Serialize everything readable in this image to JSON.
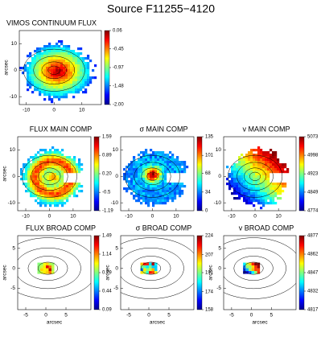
{
  "figure_title": "Source F11255−4120",
  "chart_data": [
    {
      "type": "heatmap",
      "title": "VIMOS CONTINUUM FLUX",
      "ylabel": "arcsec",
      "colormap": "jet",
      "xlim": [
        -12.5,
        17
      ],
      "ylim": [
        -13,
        15
      ],
      "xticks": [
        -10,
        0,
        10
      ],
      "yticks": [
        10,
        0,
        -10
      ],
      "clim": [
        -2,
        0.06
      ],
      "cticks": [
        0.06,
        -0.45,
        -0.97,
        -1.48,
        {
          "value": -2,
          "label": "-2.00"
        }
      ]
    },
    {
      "type": "heatmap",
      "title": "FLUX MAIN COMP",
      "ylabel": "arcsec",
      "colormap": "jet",
      "xlim": [
        -13.4,
        17.5
      ],
      "ylim": [
        -13,
        15
      ],
      "xticks": [
        -10,
        0,
        10
      ],
      "yticks": [
        10,
        0,
        -10
      ],
      "clim": [
        -1.19,
        1.59
      ],
      "cticks": [
        1.59,
        0.89,
        {
          "value": 0.2,
          "label": "0.20"
        },
        -0.5,
        -1.19
      ]
    },
    {
      "type": "heatmap",
      "title": "σ MAIN COMP",
      "colormap": "jet",
      "xlim": [
        -13.4,
        17.5
      ],
      "ylim": [
        -13,
        15
      ],
      "xticks": [
        -10,
        0,
        10
      ],
      "yticks": [
        10,
        0,
        -10
      ],
      "clim": [
        0,
        135
      ],
      "cticks": [
        135,
        101,
        68,
        34,
        0
      ]
    },
    {
      "type": "heatmap",
      "title": "v MAIN COMP",
      "colormap": "jet",
      "xlim": [
        -13.4,
        17.5
      ],
      "ylim": [
        -13,
        15
      ],
      "xticks": [
        -10,
        0,
        10
      ],
      "yticks": [
        10,
        0,
        -10
      ],
      "clim": [
        4774,
        5073
      ],
      "cticks": [
        5073,
        4998,
        4923,
        4849,
        4774
      ]
    },
    {
      "type": "heatmap",
      "title": "FLUX BROAD COMP",
      "xlabel": "arcsec",
      "ylabel": "arcsec",
      "colormap": "jet",
      "xlim": [
        -7,
        11.2
      ],
      "ylim": [
        -10.4,
        8.2
      ],
      "xticks": [
        -5,
        0,
        5
      ],
      "yticks": [
        5,
        0,
        -5
      ],
      "clim": [
        0.09,
        1.49
      ],
      "cticks": [
        1.49,
        1.14,
        0.79,
        0.44,
        0.09
      ]
    },
    {
      "type": "heatmap",
      "title": "σ BROAD COMP",
      "xlabel": "arcsec",
      "ylabel": "arcsec",
      "colormap": "jet",
      "xlim": [
        -7,
        11.2
      ],
      "ylim": [
        -10.4,
        8.2
      ],
      "xticks": [
        -5,
        0,
        5
      ],
      "yticks": [
        5,
        0,
        -5
      ],
      "clim": [
        158,
        224
      ],
      "cticks": [
        224,
        207,
        191,
        174,
        158
      ]
    },
    {
      "type": "heatmap",
      "title": "v BROAD COMP",
      "xlabel": "arcsec",
      "ylabel": "arcsec",
      "colormap": "jet",
      "xlim": [
        -7,
        11.2
      ],
      "ylim": [
        -10.4,
        8.2
      ],
      "xticks": [
        -5,
        0,
        5
      ],
      "yticks": [
        5,
        0,
        -5
      ],
      "clim": [
        4817,
        4877
      ],
      "cticks": [
        4877,
        4862,
        4847,
        4832,
        4817
      ]
    }
  ]
}
